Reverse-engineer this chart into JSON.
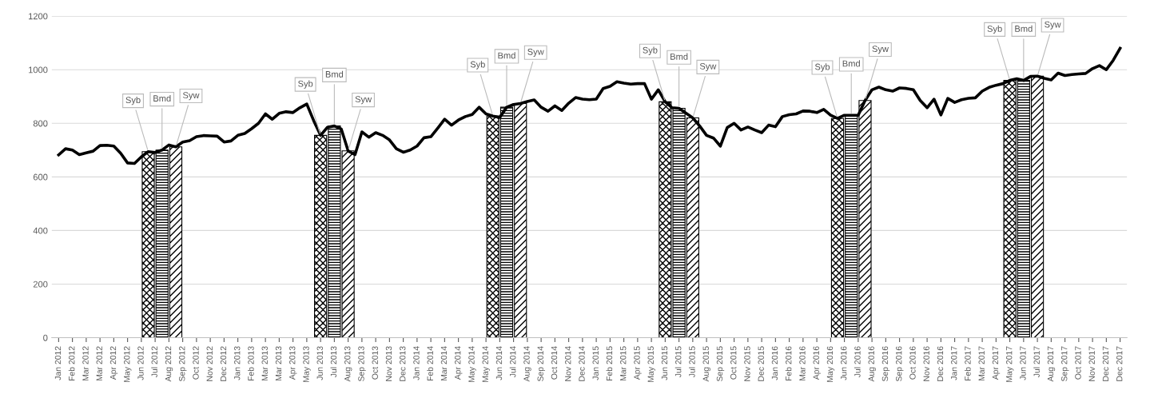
{
  "chart_data": {
    "type": "line",
    "categories": [
      "Jan 2012",
      null,
      "Feb 2012",
      null,
      "Mar 2012",
      null,
      "Mar 2012",
      null,
      "Apr 2012",
      null,
      "May 2012",
      null,
      "Jun 2012",
      null,
      "Jul 2012",
      null,
      "Aug 2012",
      null,
      "Sep 2012",
      null,
      "Oct 2012",
      null,
      "Nov 2012",
      null,
      "Dec 2012",
      null,
      "Jan 2013",
      null,
      "Feb 2013",
      null,
      "Mar 2013",
      null,
      "Mar 2013",
      null,
      "Apr 2013",
      null,
      "May 2013",
      null,
      "Jun 2013",
      null,
      "Jul 2013",
      null,
      "Aug 2013",
      null,
      "Sep 2013",
      null,
      "Oct 2013",
      null,
      "Nov 2013",
      null,
      "Dec 2013",
      null,
      "Jan 2014",
      null,
      "Feb 2014",
      null,
      "Mar 2014",
      null,
      "Apr 2014",
      null,
      "May 2014",
      null,
      "May 2014",
      null,
      "Jun 2014",
      null,
      "Jul 2014",
      null,
      "Aug 2014",
      null,
      "Sep 2014",
      null,
      "Oct 2014",
      null,
      "Nov 2014",
      null,
      "Dec 2014",
      null,
      "Jan 2015",
      null,
      "Feb 2015",
      null,
      "Mar 2015",
      null,
      "Apr 2015",
      null,
      "May 2015",
      null,
      "Jun 2015",
      null,
      "Jul 2015",
      null,
      "Jul 2015",
      null,
      "Aug 2015",
      null,
      "Sep 2015",
      null,
      "Oct 2015",
      null,
      "Nov 2015",
      null,
      "Dec 2015",
      null,
      "Jan 2016",
      null,
      "Feb 2016",
      null,
      "Mar 2016",
      null,
      "Apr 2016",
      null,
      "May 2016",
      null,
      "Jun 2016",
      null,
      "Jul 2016",
      null,
      "Aug 2016",
      null,
      "Sep 2016",
      null,
      "Sep 2016",
      null,
      "Oct 2016",
      null,
      "Nov 2016",
      null,
      "Dec 2016",
      null,
      "Jan 2017",
      null,
      "Feb 2017",
      null,
      "Mar 2017",
      null,
      "Apr 2017",
      null,
      "May 2017",
      null,
      "Jun 2017",
      null,
      "Jul 2017",
      null,
      "Aug 2017",
      null,
      "Sep 2017",
      null,
      "Oct 2017",
      null,
      "Nov 2017",
      null,
      "Dec 2017",
      null,
      "Dec 2017"
    ],
    "ylim": [
      0,
      1200
    ],
    "yticks": [
      0,
      200,
      400,
      600,
      800,
      1000,
      1200
    ],
    "grid": "y",
    "line_style": "solid",
    "series": [
      {
        "color": "#000000",
        "values": [
          682,
          705,
          700,
          683,
          690,
          696,
          717,
          718,
          715,
          688,
          652,
          650,
          675,
          694,
          691,
          700,
          719,
          712,
          730,
          735,
          750,
          754,
          753,
          752,
          730,
          734,
          755,
          762,
          780,
          800,
          835,
          815,
          837,
          843,
          840,
          858,
          872,
          810,
          755,
          785,
          790,
          779,
          697,
          683,
          768,
          748,
          765,
          755,
          738,
          705,
          692,
          700,
          715,
          746,
          750,
          782,
          815,
          793,
          812,
          825,
          833,
          860,
          835,
          827,
          822,
          860,
          870,
          874,
          881,
          887,
          860,
          845,
          865,
          848,
          875,
          896,
          890,
          888,
          890,
          930,
          938,
          955,
          950,
          946,
          948,
          948,
          890,
          925,
          880,
          858,
          856,
          838,
          820,
          790,
          755,
          745,
          715,
          784,
          800,
          775,
          786,
          775,
          765,
          793,
          787,
          825,
          832,
          835,
          846,
          845,
          840,
          852,
          830,
          818,
          830,
          830,
          830,
          885,
          925,
          935,
          925,
          920,
          932,
          930,
          925,
          885,
          858,
          890,
          831,
          893,
          878,
          888,
          893,
          895,
          920,
          934,
          942,
          948,
          960,
          966,
          960,
          975,
          976,
          968,
          962,
          987,
          978,
          982,
          984,
          986,
          1004,
          1015,
          1000,
          1035,
          1080
        ]
      },
      {
        "type": "bar",
        "name": "Syb",
        "color": "#000000",
        "values": [
          null,
          null,
          null,
          null,
          null,
          null,
          null,
          null,
          null,
          null,
          null,
          null,
          null,
          694,
          null,
          null,
          null,
          null,
          null,
          null,
          null,
          null,
          null,
          null,
          null,
          null,
          null,
          null,
          null,
          null,
          null,
          null,
          null,
          null,
          null,
          null,
          null,
          null,
          755,
          null,
          null,
          null,
          null,
          null,
          null,
          null,
          null,
          null,
          null,
          null,
          null,
          null,
          null,
          null,
          null,
          null,
          null,
          null,
          null,
          null,
          null,
          null,
          null,
          827,
          null,
          null,
          null,
          null,
          null,
          null,
          null,
          null,
          null,
          null,
          null,
          null,
          null,
          null,
          null,
          null,
          null,
          null,
          null,
          null,
          null,
          null,
          null,
          null,
          880,
          null,
          null,
          null,
          null,
          null,
          null,
          null,
          null,
          null,
          null,
          null,
          null,
          null,
          null,
          null,
          null,
          null,
          null,
          null,
          null,
          null,
          null,
          null,
          null,
          818,
          null,
          null,
          null,
          null,
          null,
          null,
          null,
          null,
          null,
          null,
          null,
          null,
          null,
          null,
          null,
          null,
          null,
          null,
          null,
          null,
          null,
          null,
          null,
          null,
          960,
          null,
          null,
          null,
          null,
          null,
          null,
          null,
          null,
          null,
          null,
          null,
          null,
          null,
          null,
          null,
          null
        ]
      },
      {
        "type": "bar",
        "name": "Bmd",
        "color": "#000000",
        "values": [
          null,
          null,
          null,
          null,
          null,
          null,
          null,
          null,
          null,
          null,
          null,
          null,
          null,
          null,
          null,
          700,
          null,
          null,
          null,
          null,
          null,
          null,
          null,
          null,
          null,
          null,
          null,
          null,
          null,
          null,
          null,
          null,
          null,
          null,
          null,
          null,
          null,
          null,
          null,
          null,
          790,
          null,
          null,
          null,
          null,
          null,
          null,
          null,
          null,
          null,
          null,
          null,
          null,
          null,
          null,
          null,
          null,
          null,
          null,
          null,
          null,
          null,
          null,
          null,
          null,
          860,
          null,
          null,
          null,
          null,
          null,
          null,
          null,
          null,
          null,
          null,
          null,
          null,
          null,
          null,
          null,
          null,
          null,
          null,
          null,
          null,
          null,
          null,
          null,
          null,
          856,
          null,
          null,
          null,
          null,
          null,
          null,
          null,
          null,
          null,
          null,
          null,
          null,
          null,
          null,
          null,
          null,
          null,
          null,
          null,
          null,
          null,
          null,
          null,
          null,
          830,
          null,
          null,
          null,
          null,
          null,
          null,
          null,
          null,
          null,
          null,
          null,
          null,
          null,
          null,
          null,
          null,
          null,
          null,
          null,
          null,
          null,
          null,
          null,
          null,
          960,
          null,
          null,
          null,
          null,
          null,
          null,
          null,
          null,
          null,
          null,
          null,
          null,
          null,
          null
        ]
      },
      {
        "type": "bar",
        "name": "Syw",
        "color": "#000000",
        "values": [
          null,
          null,
          null,
          null,
          null,
          null,
          null,
          null,
          null,
          null,
          null,
          null,
          null,
          null,
          null,
          null,
          null,
          712,
          null,
          null,
          null,
          null,
          null,
          null,
          null,
          null,
          null,
          null,
          null,
          null,
          null,
          null,
          null,
          null,
          null,
          null,
          null,
          null,
          null,
          null,
          null,
          null,
          697,
          null,
          null,
          null,
          null,
          null,
          null,
          null,
          null,
          null,
          null,
          null,
          null,
          null,
          null,
          null,
          null,
          null,
          null,
          null,
          null,
          null,
          null,
          null,
          null,
          874,
          null,
          null,
          null,
          null,
          null,
          null,
          null,
          null,
          null,
          null,
          null,
          null,
          null,
          null,
          null,
          null,
          null,
          null,
          null,
          null,
          null,
          null,
          null,
          null,
          820,
          null,
          null,
          null,
          null,
          null,
          null,
          null,
          null,
          null,
          null,
          null,
          null,
          null,
          null,
          null,
          null,
          null,
          null,
          null,
          null,
          null,
          null,
          null,
          null,
          885,
          null,
          null,
          null,
          null,
          null,
          null,
          null,
          null,
          null,
          null,
          null,
          null,
          null,
          null,
          null,
          null,
          null,
          null,
          null,
          null,
          null,
          null,
          null,
          null,
          976,
          null,
          null,
          null,
          null,
          null,
          null,
          null,
          null,
          null,
          null,
          null,
          null
        ]
      }
    ]
  }
}
